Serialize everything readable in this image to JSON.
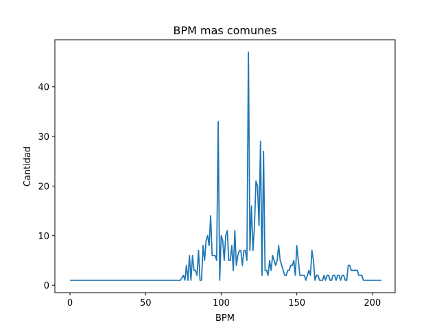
{
  "chart_data": {
    "type": "line",
    "title": "BPM mas comunes",
    "xlabel": "BPM",
    "ylabel": "Cantidad",
    "xlim": [
      -10,
      215
    ],
    "ylim": [
      -1.5,
      49.5
    ],
    "xticks": [
      0,
      50,
      100,
      150,
      200
    ],
    "yticks": [
      0,
      10,
      20,
      30,
      40
    ],
    "grid": false,
    "color": "#1f77b4",
    "series": [
      {
        "x": [
          0,
          73,
          75,
          76,
          77,
          78,
          79,
          80,
          81,
          82,
          83,
          84,
          85,
          86,
          87,
          88,
          89,
          90,
          91,
          92,
          93,
          94,
          95,
          96,
          97,
          98,
          99,
          100,
          101,
          102,
          103,
          104,
          105,
          106,
          107,
          108,
          109,
          110,
          111,
          112,
          113,
          114,
          115,
          116,
          117,
          118,
          119,
          120,
          121,
          122,
          123,
          124,
          125,
          126,
          127,
          128,
          129,
          130,
          131,
          132,
          133,
          134,
          135,
          136,
          137,
          138,
          139,
          140,
          141,
          142,
          143,
          144,
          145,
          146,
          147,
          148,
          149,
          150,
          151,
          152,
          153,
          154,
          155,
          156,
          157,
          158,
          159,
          160,
          161,
          162,
          163,
          164,
          165,
          166,
          167,
          168,
          169,
          170,
          171,
          172,
          173,
          174,
          175,
          176,
          177,
          178,
          179,
          180,
          181,
          182,
          183,
          184,
          185,
          186,
          187,
          188,
          189,
          190,
          191,
          192,
          193,
          194,
          195,
          196,
          197,
          198,
          199,
          200,
          201,
          202,
          203,
          204,
          205,
          206
        ],
        "y": [
          1,
          1,
          2,
          1,
          4,
          1,
          6,
          1,
          6,
          3,
          3,
          2,
          7,
          1,
          1,
          8,
          5,
          9,
          10,
          8,
          14,
          6,
          6,
          6,
          5,
          33,
          1,
          10,
          9,
          5,
          10,
          11,
          5,
          5,
          8,
          3,
          11,
          4,
          6,
          7,
          7,
          4,
          7,
          7,
          5,
          47,
          7,
          16,
          7,
          12,
          21,
          20,
          12,
          29,
          2,
          27,
          3,
          3,
          2,
          5,
          3,
          6,
          5,
          4,
          5,
          8,
          5,
          4,
          3,
          2,
          2,
          3,
          3,
          4,
          4,
          5,
          2,
          8,
          5,
          2,
          2,
          2,
          2,
          1,
          2,
          3,
          2,
          7,
          5,
          1,
          2,
          2,
          1,
          1,
          1,
          2,
          1,
          2,
          2,
          1,
          1,
          2,
          2,
          1,
          2,
          2,
          1,
          2,
          2,
          1,
          1,
          4,
          4,
          3,
          3,
          3,
          3,
          3,
          2,
          2,
          2,
          1,
          1,
          1,
          1,
          1,
          1,
          1,
          1,
          1,
          1,
          1,
          1,
          1
        ]
      }
    ]
  }
}
